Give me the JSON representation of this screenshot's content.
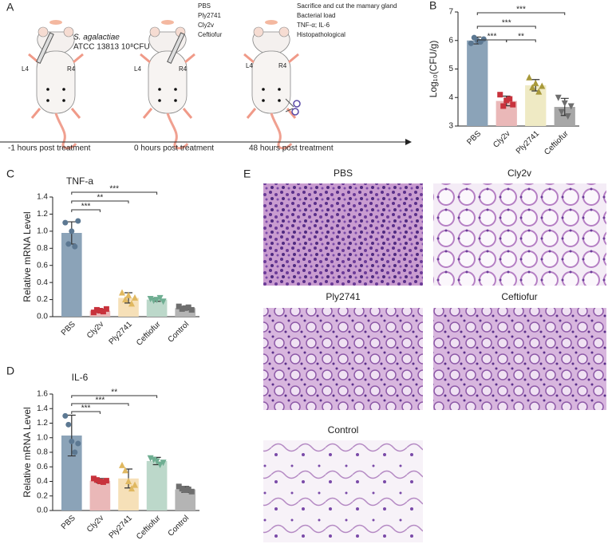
{
  "panel_a": {
    "label": "A",
    "pathogen": "S. agalactiae",
    "dose": "ATCC 13813 10⁸CFU",
    "site_left": "L4",
    "site_right": "R4",
    "treatments": [
      "PBS",
      "Ply2741",
      "Cly2v",
      "Ceftiofur"
    ],
    "endpoints": [
      "Sacrifice and cut the mamary gland",
      "Bacterial load",
      "TNF-α; IL-6",
      "Histopathological"
    ],
    "timeline": [
      "-1 hours post treatment",
      "0 hours post treatment",
      "48 hours post treatment"
    ]
  },
  "panel_e": {
    "label": "E",
    "images": [
      "PBS",
      "Cly2v",
      "Ply2741",
      "Ceftiofur",
      "Control"
    ]
  },
  "chart_data": [
    {
      "type": "bar",
      "panel": "B",
      "y_label": "Log₁₀(CFU/g)",
      "categories": [
        "PBS",
        "Cly2v",
        "Ply2741",
        "Ceftiofur"
      ],
      "values": [
        6.0,
        3.88,
        4.43,
        3.67
      ],
      "errors": [
        0.12,
        0.17,
        0.2,
        0.3
      ],
      "points": [
        [
          5.9,
          6.1,
          6.0,
          5.95,
          6.05
        ],
        [
          4.1,
          3.7,
          3.9,
          3.95,
          3.75
        ],
        [
          4.7,
          4.35,
          4.5,
          4.2,
          4.4
        ],
        [
          4.0,
          3.5,
          3.8,
          3.35,
          3.7
        ]
      ],
      "colors": [
        "#8ba3b8",
        "#eab8b8",
        "#efeac4",
        "#a7a7a7"
      ],
      "point_colors": [
        "#5c7892",
        "#c8323c",
        "#a8993a",
        "#6e6e6e"
      ],
      "markers": [
        "circle",
        "square",
        "triangle",
        "triangle-down"
      ],
      "ylim": [
        3,
        7
      ],
      "yticks": [
        3,
        4,
        5,
        6,
        7
      ],
      "brackets": [
        {
          "between": [
            "PBS",
            "Ceftiofur"
          ],
          "label": "***"
        },
        {
          "between": [
            "PBS",
            "Ply2741"
          ],
          "label": "***"
        },
        {
          "between": [
            "PBS",
            "Cly2v"
          ],
          "label": "***"
        },
        {
          "between": [
            "Cly2v",
            "Ply2741"
          ],
          "label": "**"
        }
      ]
    },
    {
      "type": "bar",
      "panel": "C",
      "title": "TNF-a",
      "y_label": "Relative mRNA Level",
      "categories": [
        "PBS",
        "Cly2v",
        "Ply2741",
        "Ceftiofur",
        "Control"
      ],
      "values": [
        0.98,
        0.07,
        0.22,
        0.2,
        0.1
      ],
      "errors": [
        0.13,
        0.02,
        0.06,
        0.02,
        0.02
      ],
      "points": [
        [
          1.1,
          0.85,
          1.0,
          0.82,
          1.12
        ],
        [
          0.05,
          0.08,
          0.07,
          0.06,
          0.09
        ],
        [
          0.28,
          0.2,
          0.25,
          0.15,
          0.22
        ],
        [
          0.21,
          0.19,
          0.2,
          0.22,
          0.18
        ],
        [
          0.12,
          0.09,
          0.1,
          0.11,
          0.08
        ]
      ],
      "colors": [
        "#8ba3b8",
        "#eab8b8",
        "#f6e0b8",
        "#bcd8ca",
        "#b4b4b4"
      ],
      "point_colors": [
        "#5c7892",
        "#c8323c",
        "#e0b860",
        "#6fae92",
        "#6e6e6e"
      ],
      "markers": [
        "circle",
        "square",
        "triangle",
        "triangle-down",
        "square"
      ],
      "ylim": [
        0,
        1.4
      ],
      "yticks": [
        {
          "value": 0,
          "label": "0.0"
        },
        0.2,
        0.4,
        0.6,
        0.8,
        {
          "value": 1,
          "label": "1.0"
        },
        1.2,
        1.4
      ],
      "brackets": [
        {
          "between": [
            "PBS",
            "Ceftiofur"
          ],
          "label": "***"
        },
        {
          "between": [
            "PBS",
            "Ply2741"
          ],
          "label": "**"
        },
        {
          "between": [
            "PBS",
            "Cly2v"
          ],
          "label": "***"
        }
      ]
    },
    {
      "type": "bar",
      "panel": "D",
      "title": "IL-6",
      "y_label": "Relative mRNA Level",
      "categories": [
        "PBS",
        "Cly2v",
        "Ply2741",
        "Ceftiofur",
        "Control"
      ],
      "values": [
        1.03,
        0.41,
        0.44,
        0.68,
        0.29
      ],
      "errors": [
        0.28,
        0.03,
        0.13,
        0.05,
        0.04
      ],
      "points": [
        [
          1.3,
          1.18,
          0.95,
          0.8,
          0.92
        ],
        [
          0.44,
          0.42,
          0.4,
          0.39,
          0.41
        ],
        [
          0.62,
          0.55,
          0.4,
          0.3,
          0.35
        ],
        [
          0.72,
          0.7,
          0.68,
          0.63,
          0.66
        ],
        [
          0.33,
          0.3,
          0.28,
          0.29,
          0.26
        ]
      ],
      "colors": [
        "#8ba3b8",
        "#eab8b8",
        "#f6e0b8",
        "#bcd8ca",
        "#b4b4b4"
      ],
      "point_colors": [
        "#5c7892",
        "#c8323c",
        "#e0b860",
        "#6fae92",
        "#6e6e6e"
      ],
      "markers": [
        "circle",
        "square",
        "triangle",
        "triangle-down",
        "square"
      ],
      "ylim": [
        0,
        1.6
      ],
      "yticks": [
        {
          "value": 0,
          "label": "0.0"
        },
        0.2,
        0.4,
        0.6,
        0.8,
        {
          "value": 1,
          "label": "1.0"
        },
        1.2,
        1.4,
        1.6
      ],
      "brackets": [
        {
          "between": [
            "PBS",
            "Ceftiofur"
          ],
          "label": "**"
        },
        {
          "between": [
            "PBS",
            "Ply2741"
          ],
          "label": "***"
        },
        {
          "between": [
            "PBS",
            "Cly2v"
          ],
          "label": "***"
        }
      ]
    }
  ]
}
